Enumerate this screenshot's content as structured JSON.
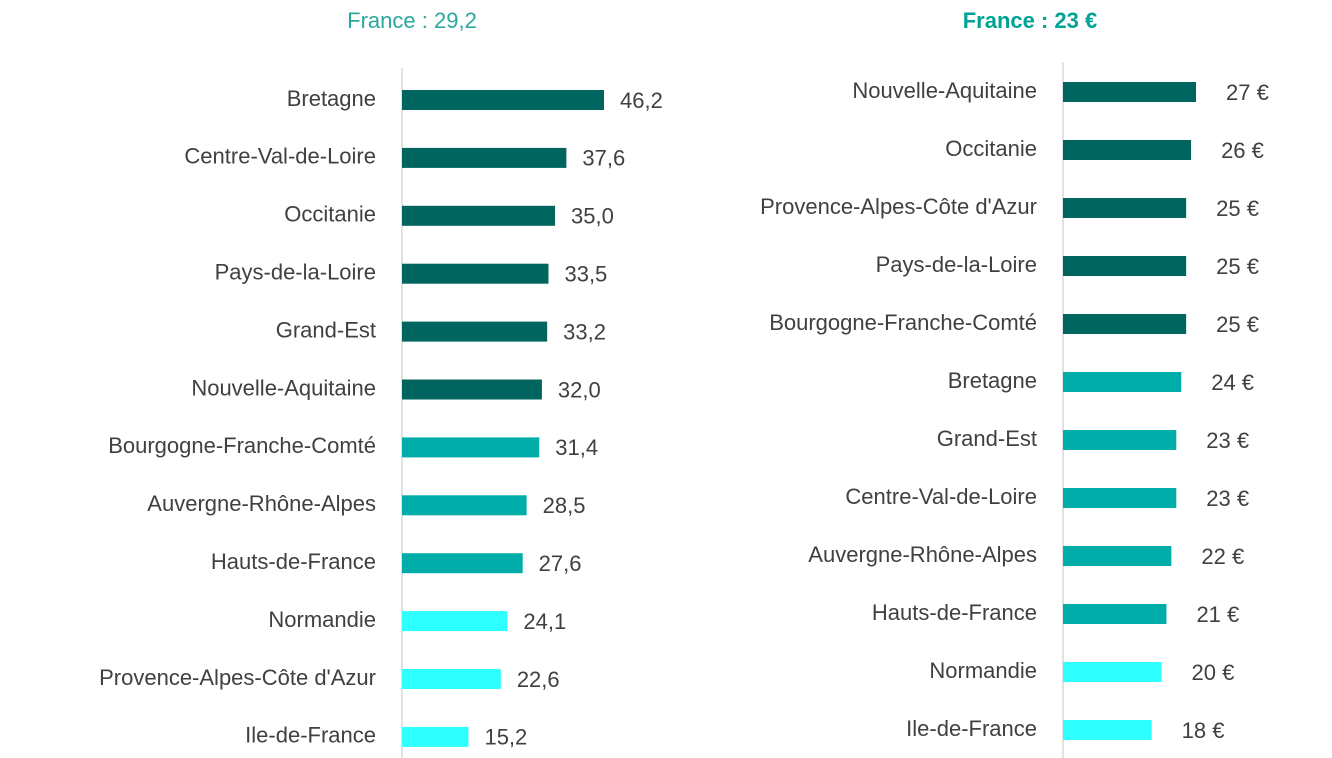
{
  "chart_data": [
    {
      "type": "bar",
      "orientation": "horizontal",
      "title": "France : 29,2",
      "categories": [
        "Bretagne",
        "Centre-Val-de-Loire",
        "Occitanie",
        "Pays-de-la-Loire",
        "Grand-Est",
        "Nouvelle-Aquitaine",
        "Bourgogne-Franche-Comté",
        "Auvergne-Rhône-Alpes",
        "Hauts-de-France",
        "Normandie",
        "Provence-Alpes-Côte d'Azur",
        "Ile-de-France"
      ],
      "values": [
        46.2,
        37.6,
        35.0,
        33.5,
        33.2,
        32.0,
        31.4,
        28.5,
        27.6,
        24.1,
        22.6,
        15.2
      ],
      "value_labels": [
        "46,2",
        "37,6",
        "35,0",
        "33,5",
        "33,2",
        "32,0",
        "31,4",
        "28,5",
        "27,6",
        "24,1",
        "22,6",
        "15,2"
      ],
      "colors": [
        "#00655f",
        "#00655f",
        "#00655f",
        "#00655f",
        "#00655f",
        "#00655f",
        "#00ada8",
        "#00ada8",
        "#00ada8",
        "#2effff",
        "#2effff",
        "#2effff"
      ]
    },
    {
      "type": "bar",
      "orientation": "horizontal",
      "title": "France : 23 €",
      "categories": [
        "Nouvelle-Aquitaine",
        "Occitanie",
        "Provence-Alpes-Côte d'Azur",
        "Pays-de-la-Loire",
        "Bourgogne-Franche-Comté",
        "Bretagne",
        "Grand-Est",
        "Centre-Val-de-Loire",
        "Auvergne-Rhône-Alpes",
        "Hauts-de-France",
        "Normandie",
        "Ile-de-France"
      ],
      "values": [
        27,
        26,
        25,
        25,
        25,
        24,
        23,
        23,
        22,
        21,
        20,
        18
      ],
      "value_labels": [
        "27 €",
        "26 €",
        "25 €",
        "25 €",
        "25 €",
        "24 €",
        "23 €",
        "23 €",
        "22 €",
        "21 €",
        "20 €",
        "18 €"
      ],
      "colors": [
        "#00655f",
        "#00655f",
        "#00655f",
        "#00655f",
        "#00655f",
        "#00ada8",
        "#00ada8",
        "#00ada8",
        "#00ada8",
        "#00ada8",
        "#2effff",
        "#2effff"
      ]
    }
  ]
}
